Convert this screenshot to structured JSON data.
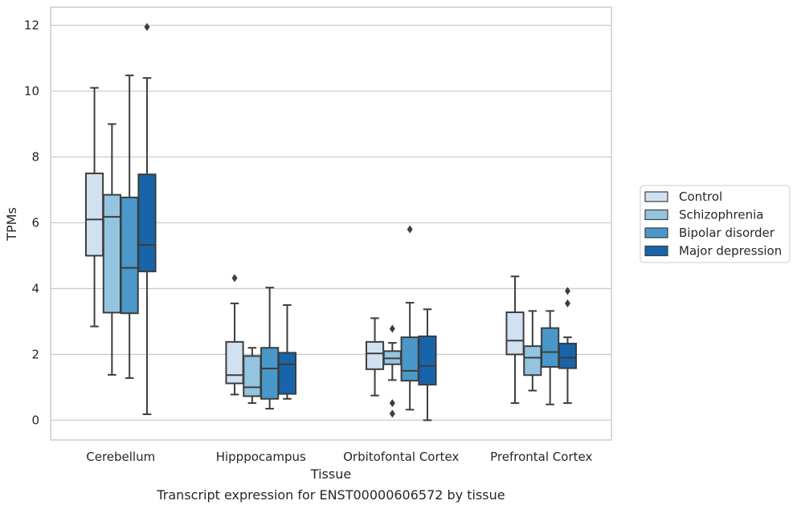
{
  "chart_data": {
    "type": "box",
    "xlabel": "Tissue",
    "ylabel": "TPMs",
    "caption": "Transcript expression for ENST00000606572 by tissue",
    "ylim": [
      -0.6,
      12.55
    ],
    "yticks": [
      0,
      2,
      4,
      6,
      8,
      10,
      12
    ],
    "grid": "horizontal",
    "legend_position": "right",
    "categories": [
      "Cerebellum",
      "Hipppocampus",
      "Orbitofontal Cortex",
      "Prefrontal Cortex"
    ],
    "series": [
      {
        "name": "Control",
        "color": "#d1e1f1",
        "boxes": [
          {
            "whislo": 2.85,
            "q1": 5.0,
            "med": 6.1,
            "q3": 7.5,
            "whishi": 10.1,
            "fliers": []
          },
          {
            "whislo": 0.78,
            "q1": 1.12,
            "med": 1.37,
            "q3": 2.38,
            "whishi": 3.55,
            "fliers": [
              4.32
            ]
          },
          {
            "whislo": 0.75,
            "q1": 1.55,
            "med": 2.03,
            "q3": 2.38,
            "whishi": 3.1,
            "fliers": []
          },
          {
            "whislo": 0.52,
            "q1": 2.0,
            "med": 2.42,
            "q3": 3.28,
            "whishi": 4.37,
            "fliers": []
          }
        ]
      },
      {
        "name": "Schizophrenia",
        "color": "#94c4df",
        "boxes": [
          {
            "whislo": 1.38,
            "q1": 3.27,
            "med": 6.18,
            "q3": 6.85,
            "whishi": 9.0,
            "fliers": []
          },
          {
            "whislo": 0.52,
            "q1": 0.73,
            "med": 1.0,
            "q3": 1.95,
            "whishi": 2.2,
            "fliers": []
          },
          {
            "whislo": 1.22,
            "q1": 1.7,
            "med": 1.88,
            "q3": 2.1,
            "whishi": 2.35,
            "fliers": [
              2.78,
              0.52,
              0.2
            ]
          },
          {
            "whislo": 0.9,
            "q1": 1.37,
            "med": 1.9,
            "q3": 2.25,
            "whishi": 3.32,
            "fliers": []
          }
        ]
      },
      {
        "name": "Bipolar disorder",
        "color": "#4a98c9",
        "boxes": [
          {
            "whislo": 1.28,
            "q1": 3.25,
            "med": 4.63,
            "q3": 6.77,
            "whishi": 10.48,
            "fliers": []
          },
          {
            "whislo": 0.35,
            "q1": 0.65,
            "med": 1.57,
            "q3": 2.2,
            "whishi": 4.03,
            "fliers": []
          },
          {
            "whislo": 0.32,
            "q1": 1.2,
            "med": 1.5,
            "q3": 2.52,
            "whishi": 3.57,
            "fliers": [
              5.8
            ]
          },
          {
            "whislo": 0.48,
            "q1": 1.62,
            "med": 2.07,
            "q3": 2.8,
            "whishi": 3.32,
            "fliers": []
          }
        ]
      },
      {
        "name": "Major depression",
        "color": "#1764ab",
        "boxes": [
          {
            "whislo": 0.18,
            "q1": 4.52,
            "med": 5.33,
            "q3": 7.47,
            "whishi": 10.4,
            "fliers": [
              11.95
            ]
          },
          {
            "whislo": 0.65,
            "q1": 0.8,
            "med": 1.7,
            "q3": 2.05,
            "whishi": 3.5,
            "fliers": []
          },
          {
            "whislo": 0.0,
            "q1": 1.08,
            "med": 1.65,
            "q3": 2.55,
            "whishi": 3.37,
            "fliers": []
          },
          {
            "whislo": 0.52,
            "q1": 1.58,
            "med": 1.9,
            "q3": 2.33,
            "whishi": 2.52,
            "fliers": [
              3.93,
              3.55
            ]
          }
        ]
      }
    ]
  }
}
